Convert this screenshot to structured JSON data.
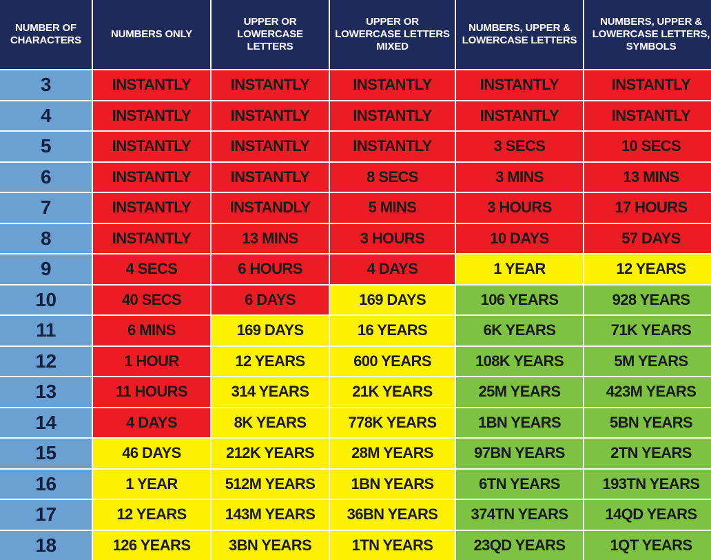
{
  "headers": [
    "NUMBER OF CHARACTERS",
    "NUMBERS ONLY",
    "UPPER OR LOWERCASE LETTERS",
    "UPPER OR LOWERCASE LETTERS MIXED",
    "NUMBERS, UPPER & LOWERCASE LETTERS",
    "NUMBERS, UPPER & LOWERCASE LETTERS, SYMBOLS"
  ],
  "colors": {
    "header": "#1f2a5c",
    "length": "#6aa0d2",
    "red": "#ec1c24",
    "yellow": "#fff200",
    "green": "#7dc242"
  },
  "rows": [
    {
      "length": "3",
      "cells": [
        {
          "text": "INSTANTLY",
          "level": "red"
        },
        {
          "text": "INSTANTLY",
          "level": "red"
        },
        {
          "text": "INSTANTLY",
          "level": "red"
        },
        {
          "text": "INSTANTLY",
          "level": "red"
        },
        {
          "text": "INSTANTLY",
          "level": "red"
        }
      ]
    },
    {
      "length": "4",
      "cells": [
        {
          "text": "INSTANTLY",
          "level": "red"
        },
        {
          "text": "INSTANTLY",
          "level": "red"
        },
        {
          "text": "INSTANTLY",
          "level": "red"
        },
        {
          "text": "INSTANTLY",
          "level": "red"
        },
        {
          "text": "INSTANTLY",
          "level": "red"
        }
      ]
    },
    {
      "length": "5",
      "cells": [
        {
          "text": "INSTANTLY",
          "level": "red"
        },
        {
          "text": "INSTANTLY",
          "level": "red"
        },
        {
          "text": "INSTANTLY",
          "level": "red"
        },
        {
          "text": "3 SECS",
          "level": "red"
        },
        {
          "text": "10 SECS",
          "level": "red"
        }
      ]
    },
    {
      "length": "6",
      "cells": [
        {
          "text": "INSTANTLY",
          "level": "red"
        },
        {
          "text": "INSTANTLY",
          "level": "red"
        },
        {
          "text": "8 SECS",
          "level": "red"
        },
        {
          "text": "3 MINS",
          "level": "red"
        },
        {
          "text": "13 MINS",
          "level": "red"
        }
      ]
    },
    {
      "length": "7",
      "cells": [
        {
          "text": "INSTANTLY",
          "level": "red"
        },
        {
          "text": "INSTANDLY",
          "level": "red"
        },
        {
          "text": "5 MINS",
          "level": "red"
        },
        {
          "text": "3 HOURS",
          "level": "red"
        },
        {
          "text": "17 HOURS",
          "level": "red"
        }
      ]
    },
    {
      "length": "8",
      "cells": [
        {
          "text": "INSTANTLY",
          "level": "red"
        },
        {
          "text": "13 MINS",
          "level": "red"
        },
        {
          "text": "3 HOURS",
          "level": "red"
        },
        {
          "text": "10 DAYS",
          "level": "red"
        },
        {
          "text": "57 DAYS",
          "level": "red"
        }
      ]
    },
    {
      "length": "9",
      "cells": [
        {
          "text": "4 SECS",
          "level": "red"
        },
        {
          "text": "6 HOURS",
          "level": "red"
        },
        {
          "text": "4 DAYS",
          "level": "red"
        },
        {
          "text": "1 YEAR",
          "level": "yellow"
        },
        {
          "text": "12 YEARS",
          "level": "yellow"
        }
      ]
    },
    {
      "length": "10",
      "cells": [
        {
          "text": "40 SECS",
          "level": "red"
        },
        {
          "text": "6 DAYS",
          "level": "red"
        },
        {
          "text": "169 DAYS",
          "level": "yellow"
        },
        {
          "text": "106 YEARS",
          "level": "green"
        },
        {
          "text": "928 YEARS",
          "level": "green"
        }
      ]
    },
    {
      "length": "11",
      "cells": [
        {
          "text": "6 MINS",
          "level": "red"
        },
        {
          "text": "169 DAYS",
          "level": "yellow"
        },
        {
          "text": "16 YEARS",
          "level": "yellow"
        },
        {
          "text": "6K YEARS",
          "level": "green"
        },
        {
          "text": "71K YEARS",
          "level": "green"
        }
      ]
    },
    {
      "length": "12",
      "cells": [
        {
          "text": "1 HOUR",
          "level": "red"
        },
        {
          "text": "12 YEARS",
          "level": "yellow"
        },
        {
          "text": "600 YEARS",
          "level": "yellow"
        },
        {
          "text": "108K YEARS",
          "level": "green"
        },
        {
          "text": "5M YEARS",
          "level": "green"
        }
      ]
    },
    {
      "length": "13",
      "cells": [
        {
          "text": "11 HOURS",
          "level": "red"
        },
        {
          "text": "314 YEARS",
          "level": "yellow"
        },
        {
          "text": "21K YEARS",
          "level": "yellow"
        },
        {
          "text": "25M YEARS",
          "level": "green"
        },
        {
          "text": "423M YEARS",
          "level": "green"
        }
      ]
    },
    {
      "length": "14",
      "cells": [
        {
          "text": "4 DAYS",
          "level": "red"
        },
        {
          "text": "8K YEARS",
          "level": "yellow"
        },
        {
          "text": "778K YEARS",
          "level": "yellow"
        },
        {
          "text": "1BN YEARS",
          "level": "green"
        },
        {
          "text": "5BN YEARS",
          "level": "green"
        }
      ]
    },
    {
      "length": "15",
      "cells": [
        {
          "text": "46 DAYS",
          "level": "yellow"
        },
        {
          "text": "212K YEARS",
          "level": "yellow"
        },
        {
          "text": "28M YEARS",
          "level": "yellow"
        },
        {
          "text": "97BN YEARS",
          "level": "green"
        },
        {
          "text": "2TN YEARS",
          "level": "green"
        }
      ]
    },
    {
      "length": "16",
      "cells": [
        {
          "text": "1 YEAR",
          "level": "yellow"
        },
        {
          "text": "512M YEARS",
          "level": "yellow"
        },
        {
          "text": "1BN YEARS",
          "level": "yellow"
        },
        {
          "text": "6TN YEARS",
          "level": "green"
        },
        {
          "text": "193TN YEARS",
          "level": "green"
        }
      ]
    },
    {
      "length": "17",
      "cells": [
        {
          "text": "12 YEARS",
          "level": "yellow"
        },
        {
          "text": "143M YEARS",
          "level": "yellow"
        },
        {
          "text": "36BN YEARS",
          "level": "yellow"
        },
        {
          "text": "374TN YEARS",
          "level": "green"
        },
        {
          "text": "14QD YEARS",
          "level": "green"
        }
      ]
    },
    {
      "length": "18",
      "cells": [
        {
          "text": "126 YEARS",
          "level": "yellow"
        },
        {
          "text": "3BN YEARS",
          "level": "yellow"
        },
        {
          "text": "1TN YEARS",
          "level": "yellow"
        },
        {
          "text": "23QD YEARS",
          "level": "green"
        },
        {
          "text": "1QT YEARS",
          "level": "green"
        }
      ]
    }
  ]
}
